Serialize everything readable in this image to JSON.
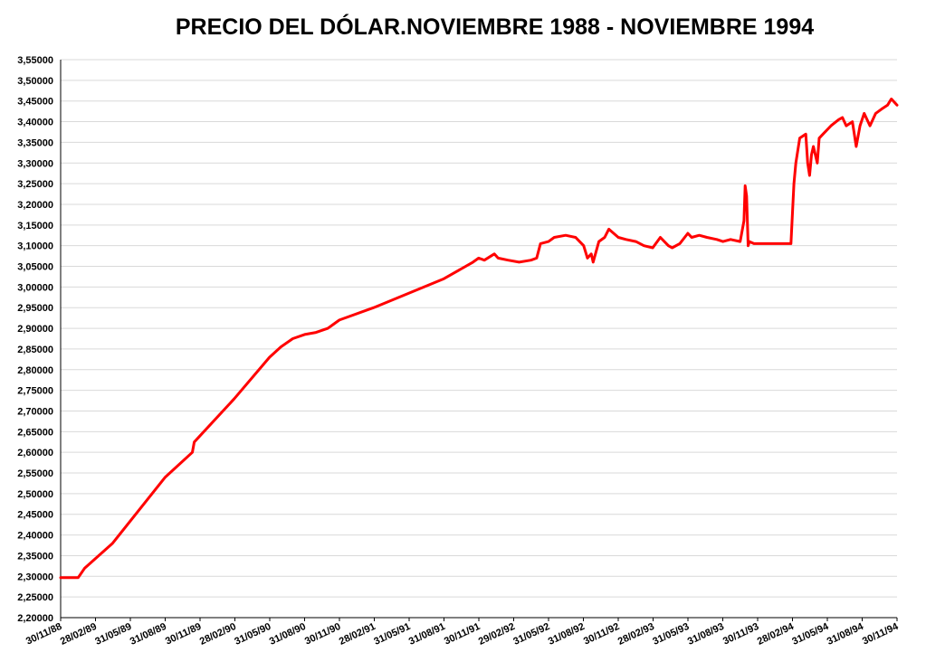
{
  "chart_data": {
    "type": "line",
    "title": "PRECIO DEL DÓLAR.NOVIEMBRE 1988 - NOVIEMBRE 1994",
    "xlabel": "",
    "ylabel": "",
    "ylim": [
      2.2,
      3.55
    ],
    "ytick_labels": [
      "2,20000",
      "2,25000",
      "2,30000",
      "2,35000",
      "2,40000",
      "2,45000",
      "2,50000",
      "2,55000",
      "2,60000",
      "2,65000",
      "2,70000",
      "2,75000",
      "2,80000",
      "2,85000",
      "2,90000",
      "2,95000",
      "3,00000",
      "3,05000",
      "3,10000",
      "3,15000",
      "3,20000",
      "3,25000",
      "3,30000",
      "3,35000",
      "3,40000",
      "3,45000",
      "3,50000",
      "3,55000"
    ],
    "xtick_labels": [
      "30/11/88",
      "28/02/89",
      "31/05/89",
      "31/08/89",
      "30/11/89",
      "28/02/90",
      "31/05/90",
      "31/08/90",
      "30/11/90",
      "28/02/91",
      "31/05/91",
      "31/08/91",
      "30/11/91",
      "29/02/92",
      "31/05/92",
      "31/08/92",
      "30/11/92",
      "28/02/93",
      "31/05/93",
      "31/08/93",
      "30/11/93",
      "28/02/94",
      "31/05/94",
      "31/08/94",
      "30/11/94"
    ],
    "grid": true,
    "legend": "none",
    "line_color": "#ff0000",
    "series": [
      {
        "x": [
          "1988-11-30",
          "1989-01-15",
          "1989-02-01",
          "1989-04-15",
          "1989-08-31",
          "1989-11-10",
          "1989-11-15",
          "1990-02-28",
          "1990-05-31",
          "1990-06-30",
          "1990-07-31",
          "1990-08-31",
          "1990-09-30",
          "1990-10-31",
          "1990-11-15",
          "1990-11-30",
          "1991-02-28",
          "1991-05-31",
          "1991-08-31",
          "1991-11-15",
          "1991-11-30",
          "1991-12-15",
          "1992-01-10",
          "1992-01-20",
          "1992-02-15",
          "1992-03-15",
          "1992-04-15",
          "1992-04-30",
          "1992-05-10",
          "1992-05-31",
          "1992-06-15",
          "1992-07-15",
          "1992-08-10",
          "1992-08-31",
          "1992-09-10",
          "1992-09-20",
          "1992-09-25",
          "1992-10-10",
          "1992-10-25",
          "1992-11-05",
          "1992-11-30",
          "1992-12-20",
          "1993-01-15",
          "1993-02-05",
          "1993-02-28",
          "1993-03-20",
          "1993-04-10",
          "1993-04-20",
          "1993-05-10",
          "1993-05-31",
          "1993-06-10",
          "1993-06-30",
          "1993-07-20",
          "1993-08-15",
          "1993-08-31",
          "1993-09-20",
          "1993-10-15",
          "1993-10-25",
          "1993-10-28",
          "1993-11-01",
          "1993-11-05",
          "1993-11-08",
          "1993-11-20",
          "1993-12-10",
          "1994-01-10",
          "1994-01-31",
          "1994-02-10",
          "1994-02-25",
          "1994-03-05",
          "1994-03-10",
          "1994-03-20",
          "1994-04-05",
          "1994-04-10",
          "1994-04-15",
          "1994-04-20",
          "1994-04-25",
          "1994-05-05",
          "1994-05-10",
          "1994-05-20",
          "1994-06-10",
          "1994-06-30",
          "1994-07-10",
          "1994-07-20",
          "1994-08-05",
          "1994-08-15",
          "1994-08-25",
          "1994-09-05",
          "1994-09-20",
          "1994-10-05",
          "1994-10-20",
          "1994-11-05",
          "1994-11-15",
          "1994-11-30"
        ],
        "y": [
          2.297,
          2.297,
          2.32,
          2.38,
          2.54,
          2.6,
          2.625,
          2.73,
          2.83,
          2.855,
          2.875,
          2.885,
          2.89,
          2.9,
          2.91,
          2.92,
          2.95,
          2.985,
          3.02,
          3.06,
          3.07,
          3.065,
          3.08,
          3.07,
          3.065,
          3.06,
          3.065,
          3.07,
          3.105,
          3.11,
          3.12,
          3.125,
          3.12,
          3.1,
          3.07,
          3.08,
          3.06,
          3.11,
          3.12,
          3.14,
          3.12,
          3.115,
          3.11,
          3.1,
          3.095,
          3.12,
          3.1,
          3.095,
          3.105,
          3.13,
          3.12,
          3.125,
          3.12,
          3.115,
          3.11,
          3.115,
          3.11,
          3.16,
          3.245,
          3.22,
          3.1,
          3.11,
          3.105,
          3.105,
          3.105,
          3.105,
          3.105,
          3.105,
          3.25,
          3.3,
          3.36,
          3.37,
          3.3,
          3.27,
          3.32,
          3.34,
          3.3,
          3.36,
          3.37,
          3.39,
          3.405,
          3.41,
          3.39,
          3.4,
          3.34,
          3.39,
          3.42,
          3.39,
          3.42,
          3.43,
          3.44,
          3.455,
          3.44
        ]
      }
    ]
  }
}
